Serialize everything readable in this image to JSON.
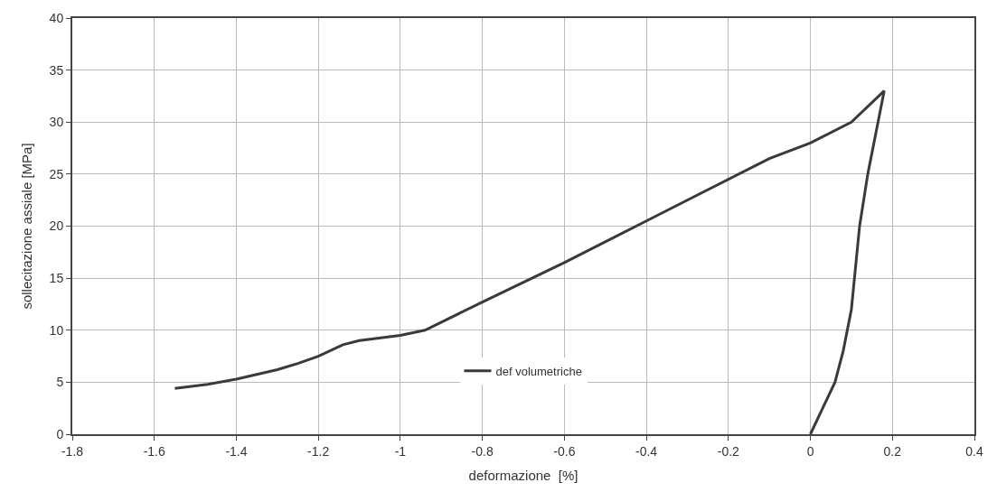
{
  "chart_data": {
    "type": "line",
    "xlabel": "deformazione  [%]",
    "ylabel": "sollecitazione assiale [MPa]",
    "xlim": [
      -1.8,
      0.4
    ],
    "xticks": [
      -1.8,
      -1.6,
      -1.4,
      -1.2,
      -1,
      -0.8,
      -0.6,
      -0.4,
      -0.2,
      0,
      0.2,
      0.4
    ],
    "ylim": [
      0,
      40
    ],
    "yticks": [
      0,
      5,
      10,
      15,
      20,
      25,
      30,
      35,
      40
    ],
    "grid": true,
    "legend": "bottom",
    "marker": "none",
    "line_style": "solid",
    "series": [
      {
        "name": "def volumetriche",
        "color": "#3a3a3a",
        "x": [
          0,
          0.03,
          0.06,
          0.08,
          0.1,
          0.12,
          0.14,
          0.16,
          0.18,
          0.1,
          0,
          -0.1,
          -0.4,
          -0.6,
          -0.8,
          -0.94,
          -1,
          -1.1,
          -1.14,
          -1.2,
          -1.25,
          -1.3,
          -1.4,
          -1.47,
          -1.55
        ],
        "values": [
          0,
          2.5,
          5,
          8,
          12,
          20,
          25,
          29,
          33,
          30,
          28,
          26.5,
          20.5,
          16.5,
          12.7,
          10,
          9.5,
          9,
          8.6,
          7.5,
          6.8,
          6.2,
          5.3,
          4.8,
          4.4
        ]
      }
    ]
  }
}
